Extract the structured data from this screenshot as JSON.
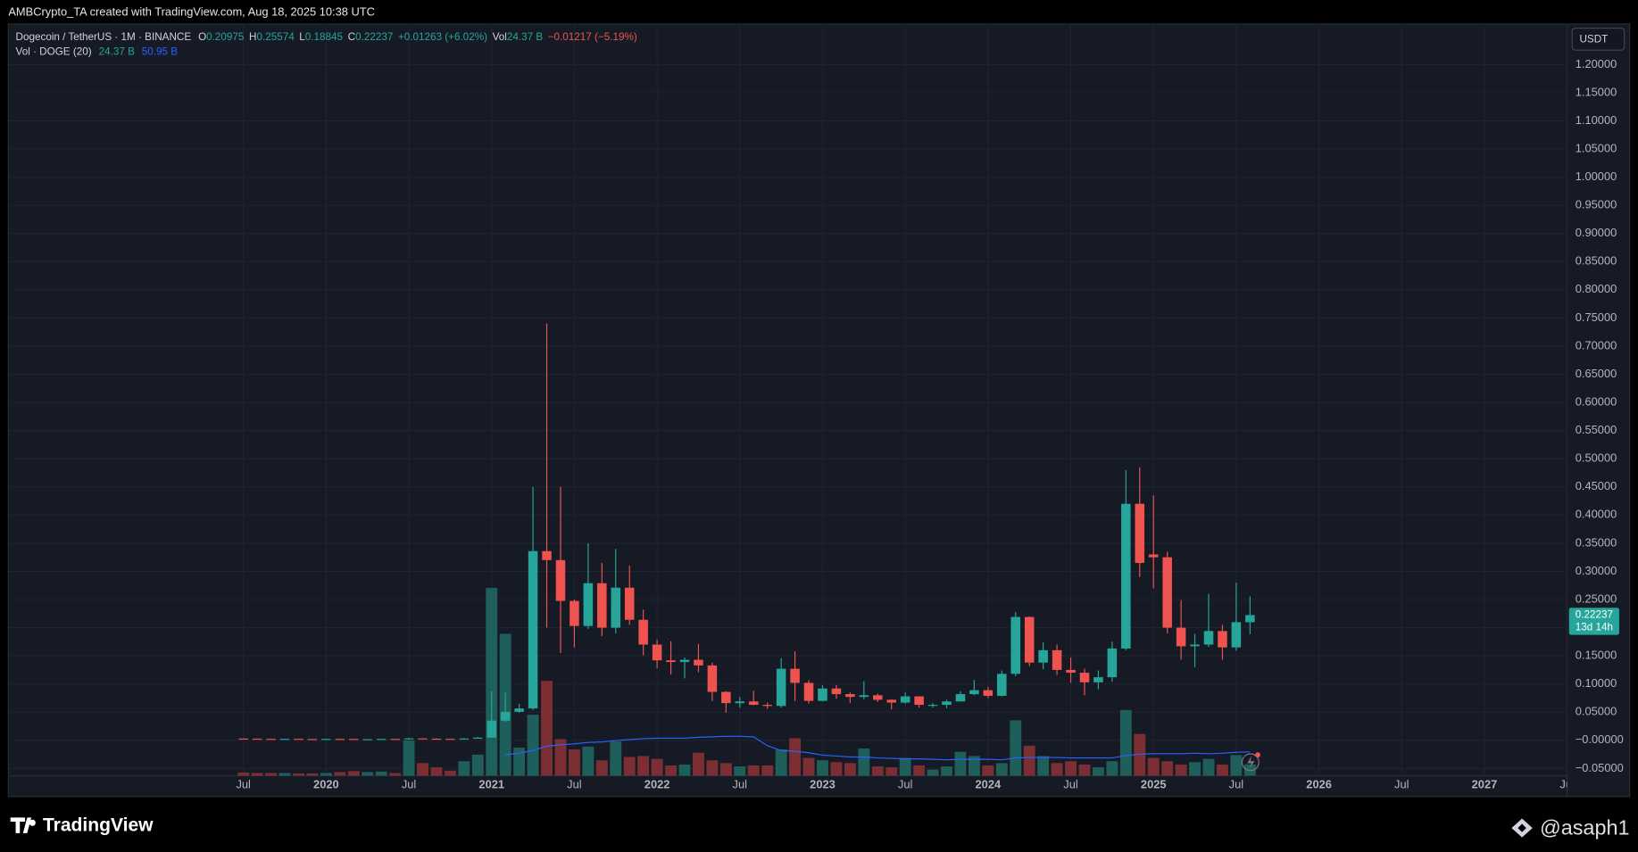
{
  "header": {
    "caption": "AMBCrypto_TA created with TradingView.com, Aug 18, 2025 10:38 UTC",
    "currency_button": "USDT"
  },
  "legend": {
    "symbol": "Dogecoin / TetherUS · 1M · BINANCE",
    "open_label": "O",
    "high_label": "H",
    "low_label": "L",
    "close_label": "C",
    "change": "+0.01263 (+6.02%)",
    "vol_label": "Vol",
    "vol_value": "24.37 B",
    "vol_change": "−0.01217 (−5.19%)",
    "study": "Vol · DOGE (20)",
    "study_volume": "24.37 B",
    "study_ma": "50.95 B"
  },
  "footer": {
    "brand": "TradingView",
    "watermark": "@asaph1"
  },
  "chart_data": {
    "type": "candlestick",
    "up_color": "#26a69a",
    "down_color": "#ef5350",
    "volume_up_color": "#1f5f5b",
    "volume_down_color": "#7b2f33",
    "ma_color": "#2962ff",
    "grid": true,
    "categories": [
      "Jul",
      null,
      null,
      null,
      null,
      null,
      "2020",
      null,
      null,
      null,
      null,
      null,
      "Jul",
      null,
      null,
      null,
      null,
      null,
      "2021",
      null,
      null,
      null,
      null,
      null,
      "Jul",
      null,
      null,
      null,
      null,
      null,
      "2022",
      null,
      null,
      null,
      null,
      null,
      "Jul",
      null,
      null,
      null,
      null,
      null,
      "2023",
      null,
      null,
      null,
      null,
      null,
      "Jul",
      null,
      null,
      null,
      null,
      null,
      "2024",
      null,
      null,
      null,
      null,
      null,
      "Jul",
      null,
      null,
      null,
      null,
      null,
      "2025",
      null,
      null,
      null,
      null,
      null,
      "Jul",
      null,
      null,
      null,
      null,
      null,
      "2026",
      null,
      null,
      null,
      null,
      null,
      "Jul",
      null,
      null,
      null,
      null,
      null,
      "2027",
      null,
      null,
      null,
      null,
      null,
      "Jul"
    ],
    "open": [
      0.0031,
      0.0029,
      0.00263,
      0.0024,
      0.0027,
      0.00227,
      0.00202,
      0.00247,
      0.00245,
      0.0019,
      0.002,
      0.00252,
      0.00245,
      0.0034,
      0.0029,
      0.00275,
      0.00258,
      0.00315,
      0.0047,
      0.0349,
      0.0506,
      0.0565,
      0.336,
      0.32,
      0.2475,
      0.203,
      0.279,
      0.2,
      0.271,
      0.214,
      0.17,
      0.142,
      0.139,
      0.143,
      0.133,
      0.086,
      0.066,
      0.069,
      0.063,
      0.061,
      0.127,
      0.102,
      0.07,
      0.092,
      0.082,
      0.077,
      0.08,
      0.072,
      0.067,
      0.078,
      0.063,
      0.063,
      0.069,
      0.082,
      0.089,
      0.079,
      0.118,
      0.219,
      0.138,
      0.16,
      0.125,
      0.12,
      0.103,
      0.112,
      0.163,
      0.42,
      0.33,
      0.325,
      0.2,
      0.167,
      0.17,
      0.194,
      0.165,
      0.20975,
      null,
      null,
      null,
      null,
      null,
      null,
      null,
      null,
      null,
      null,
      null,
      null,
      null,
      null,
      null,
      null,
      null,
      null,
      null,
      null,
      null,
      null,
      null
    ],
    "high": [
      0.00335,
      0.003,
      0.00275,
      0.0029,
      0.00275,
      0.0024,
      0.0029,
      0.0033,
      0.0026,
      0.00225,
      0.00272,
      0.00275,
      0.0046,
      0.00375,
      0.0036,
      0.0028,
      0.0038,
      0.0059,
      0.087,
      0.0845,
      0.0646,
      0.45,
      0.74,
      0.45,
      0.25,
      0.35,
      0.315,
      0.34,
      0.31,
      0.232,
      0.179,
      0.176,
      0.147,
      0.171,
      0.138,
      0.087,
      0.077,
      0.088,
      0.067,
      0.146,
      0.158,
      0.107,
      0.098,
      0.098,
      0.085,
      0.105,
      0.083,
      0.073,
      0.085,
      0.078,
      0.066,
      0.072,
      0.087,
      0.107,
      0.095,
      0.124,
      0.228,
      0.22,
      0.174,
      0.17,
      0.147,
      0.127,
      0.124,
      0.175,
      0.48,
      0.485,
      0.435,
      0.335,
      0.249,
      0.189,
      0.26,
      0.205,
      0.28,
      0.25574,
      null,
      null,
      null,
      null,
      null,
      null,
      null,
      null,
      null,
      null,
      null,
      null,
      null,
      null,
      null,
      null,
      null,
      null,
      null,
      null,
      null,
      null,
      null
    ],
    "low": [
      0.00245,
      0.0024,
      0.0022,
      0.00225,
      0.0022,
      0.0018,
      0.002,
      0.0024,
      0.0012,
      0.0018,
      0.0019,
      0.00235,
      0.0024,
      0.0028,
      0.0027,
      0.00245,
      0.00254,
      0.003,
      0.0046,
      0.033,
      0.0488,
      0.054,
      0.2,
      0.155,
      0.165,
      0.198,
      0.185,
      0.19,
      0.205,
      0.151,
      0.128,
      0.117,
      0.11,
      0.121,
      0.07,
      0.049,
      0.058,
      0.062,
      0.056,
      0.058,
      0.07,
      0.065,
      0.069,
      0.074,
      0.066,
      0.073,
      0.068,
      0.055,
      0.065,
      0.058,
      0.058,
      0.057,
      0.069,
      0.08,
      0.075,
      0.078,
      0.114,
      0.132,
      0.126,
      0.116,
      0.102,
      0.08,
      0.091,
      0.104,
      0.16,
      0.29,
      0.27,
      0.19,
      0.143,
      0.13,
      0.166,
      0.143,
      0.159,
      0.18845,
      null,
      null,
      null,
      null,
      null,
      null,
      null,
      null,
      null,
      null,
      null,
      null,
      null,
      null,
      null,
      null,
      null,
      null,
      null,
      null,
      null,
      null,
      null
    ],
    "close": [
      0.0029,
      0.00263,
      0.0024,
      0.0027,
      0.00227,
      0.00202,
      0.00247,
      0.00245,
      0.0019,
      0.002,
      0.00252,
      0.00245,
      0.0034,
      0.0029,
      0.00275,
      0.00258,
      0.00315,
      0.0047,
      0.0349,
      0.0506,
      0.0565,
      0.336,
      0.32,
      0.2475,
      0.203,
      0.279,
      0.2,
      0.271,
      0.214,
      0.17,
      0.142,
      0.139,
      0.143,
      0.133,
      0.086,
      0.066,
      0.069,
      0.063,
      0.061,
      0.127,
      0.102,
      0.07,
      0.092,
      0.082,
      0.077,
      0.08,
      0.072,
      0.067,
      0.078,
      0.063,
      0.063,
      0.069,
      0.082,
      0.089,
      0.079,
      0.118,
      0.219,
      0.138,
      0.16,
      0.125,
      0.12,
      0.103,
      0.112,
      0.163,
      0.42,
      0.315,
      0.325,
      0.2,
      0.167,
      0.17,
      0.194,
      0.165,
      0.20975,
      0.22237,
      null,
      null,
      null,
      null,
      null,
      null,
      null,
      null,
      null,
      null,
      null,
      null,
      null,
      null,
      null,
      null,
      null,
      null,
      null,
      null,
      null,
      null,
      null
    ],
    "volume": [
      7,
      6,
      6,
      6,
      5,
      5,
      6,
      8,
      10,
      8,
      9,
      6,
      75,
      27,
      18,
      11,
      31,
      45,
      400,
      302,
      60,
      130,
      202,
      78,
      56,
      62,
      33,
      73,
      40,
      42,
      36,
      22,
      24,
      49,
      33,
      27,
      20,
      22,
      22,
      56,
      80,
      38,
      33,
      29,
      27,
      58,
      20,
      18,
      38,
      22,
      13,
      20,
      51,
      42,
      22,
      27,
      118,
      64,
      42,
      27,
      31,
      24,
      18,
      31,
      140,
      89,
      38,
      31,
      24,
      29,
      36,
      24,
      44,
      24.37,
      null,
      null,
      null,
      null,
      null,
      null,
      null,
      null,
      null,
      null,
      null,
      null,
      null,
      null,
      null,
      null,
      null,
      null,
      null,
      null,
      null,
      null,
      null
    ],
    "volume_ma": [
      null,
      null,
      null,
      null,
      null,
      null,
      null,
      null,
      null,
      null,
      null,
      null,
      null,
      null,
      null,
      null,
      null,
      null,
      null,
      45,
      48,
      54,
      63,
      66,
      68,
      71,
      72,
      75,
      77,
      79,
      80,
      80,
      80,
      82,
      83,
      84,
      84,
      83,
      64,
      54,
      52,
      49,
      44,
      42,
      40,
      40,
      38,
      37,
      36,
      36,
      35,
      34,
      35,
      35,
      35,
      34,
      38,
      39,
      39,
      39,
      38,
      38,
      38,
      38,
      43,
      46,
      47,
      47,
      47,
      48,
      47,
      48,
      50,
      50.95,
      null,
      null,
      null,
      null,
      null,
      null,
      null,
      null,
      null,
      null,
      null,
      null,
      null,
      null,
      null,
      null,
      null,
      null,
      null,
      null,
      null,
      null,
      null
    ],
    "countdown": "13d 14h",
    "ylim": [
      -0.063,
      1.272
    ],
    "yticks": [
      {
        "value": 1.2,
        "label": "1.20000"
      },
      {
        "value": 1.15,
        "label": "1.15000"
      },
      {
        "value": 1.1,
        "label": "1.10000"
      },
      {
        "value": 1.05,
        "label": "1.05000"
      },
      {
        "value": 1,
        "label": "1.00000"
      },
      {
        "value": 0.95,
        "label": "0.95000"
      },
      {
        "value": 0.9,
        "label": "0.90000"
      },
      {
        "value": 0.85,
        "label": "0.85000"
      },
      {
        "value": 0.8,
        "label": "0.80000"
      },
      {
        "value": 0.75,
        "label": "0.75000"
      },
      {
        "value": 0.7,
        "label": "0.70000"
      },
      {
        "value": 0.65,
        "label": "0.65000"
      },
      {
        "value": 0.6,
        "label": "0.60000"
      },
      {
        "value": 0.55,
        "label": "0.55000"
      },
      {
        "value": 0.5,
        "label": "0.50000"
      },
      {
        "value": 0.45,
        "label": "0.45000"
      },
      {
        "value": 0.4,
        "label": "0.40000"
      },
      {
        "value": 0.35,
        "label": "0.35000"
      },
      {
        "value": 0.3,
        "label": "0.30000"
      },
      {
        "value": 0.25,
        "label": "0.25000"
      },
      {
        "value": 0.2,
        "label": "0.20000"
      },
      {
        "value": 0.15,
        "label": "0.15000"
      },
      {
        "value": 0.1,
        "label": "0.10000"
      },
      {
        "value": 0.05,
        "label": "0.05000"
      },
      {
        "value": 0,
        "label": "−0.00000"
      },
      {
        "value": -0.05,
        "label": "−0.05000"
      }
    ],
    "y2lim": [
      0,
      1600
    ]
  }
}
